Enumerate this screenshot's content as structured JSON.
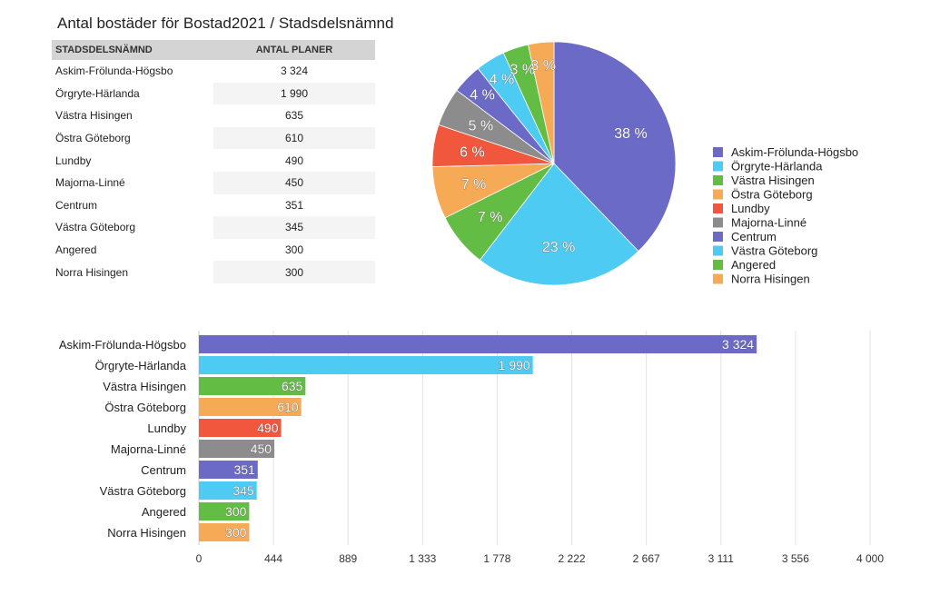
{
  "title": "Antal bostäder för Bostad2021 / Stadsdelsnämnd",
  "table": {
    "headers": [
      "STADSDELSNÄMND",
      "ANTAL PLANER"
    ],
    "rows": [
      {
        "name": "Askim-Frölunda-Högsbo",
        "value": "3 324"
      },
      {
        "name": "Örgryte-Härlanda",
        "value": "1 990"
      },
      {
        "name": "Västra Hisingen",
        "value": "635"
      },
      {
        "name": "Östra Göteborg",
        "value": "610"
      },
      {
        "name": "Lundby",
        "value": "490"
      },
      {
        "name": "Majorna-Linné",
        "value": "450"
      },
      {
        "name": "Centrum",
        "value": "351"
      },
      {
        "name": "Västra Göteborg",
        "value": "345"
      },
      {
        "name": "Angered",
        "value": "300"
      },
      {
        "name": "Norra Hisingen",
        "value": "300"
      }
    ]
  },
  "chart_data": [
    {
      "type": "pie",
      "categories": [
        "Askim-Frölunda-Högsbo",
        "Örgryte-Härlanda",
        "Västra Hisingen",
        "Östra Göteborg",
        "Lundby",
        "Majorna-Linné",
        "Centrum",
        "Västra Göteborg",
        "Angered",
        "Norra Hisingen"
      ],
      "values": [
        3324,
        1990,
        635,
        610,
        490,
        450,
        351,
        345,
        300,
        300
      ],
      "labels": [
        "38 %",
        "23 %",
        "7 %",
        "7 %",
        "6 %",
        "5 %",
        "4 %",
        "4 %",
        "3 %",
        "3 %"
      ],
      "colors": [
        "#6b6bc7",
        "#4ecbf3",
        "#63bd45",
        "#f7aa55",
        "#f0573d",
        "#8c8c8c",
        "#6b6bc7",
        "#4ecbf3",
        "#63bd45",
        "#f7aa55"
      ],
      "legend": "right"
    },
    {
      "type": "bar",
      "orientation": "horizontal",
      "categories": [
        "Askim-Frölunda-Högsbo",
        "Örgryte-Härlanda",
        "Västra Hisingen",
        "Östra Göteborg",
        "Lundby",
        "Majorna-Linné",
        "Centrum",
        "Västra Göteborg",
        "Angered",
        "Norra Hisingen"
      ],
      "values": [
        3324,
        1990,
        635,
        610,
        490,
        450,
        351,
        345,
        300,
        300
      ],
      "value_labels": [
        "3 324",
        "1 990",
        "635",
        "610",
        "490",
        "450",
        "351",
        "345",
        "300",
        "300"
      ],
      "colors": [
        "#6b6bc7",
        "#4ecbf3",
        "#63bd45",
        "#f7aa55",
        "#f0573d",
        "#8c8c8c",
        "#6b6bc7",
        "#4ecbf3",
        "#63bd45",
        "#f7aa55"
      ],
      "xlim": [
        0,
        4000
      ],
      "x_ticks": [
        0,
        444.4,
        888.9,
        1333.3,
        1777.8,
        2222.2,
        2666.7,
        3111.1,
        3555.6,
        4000
      ],
      "x_tick_labels": [
        "0",
        "444",
        "889",
        "1 333",
        "1 778",
        "2 222",
        "2 667",
        "3 111",
        "3 556",
        "4 000"
      ],
      "grid": true
    }
  ]
}
